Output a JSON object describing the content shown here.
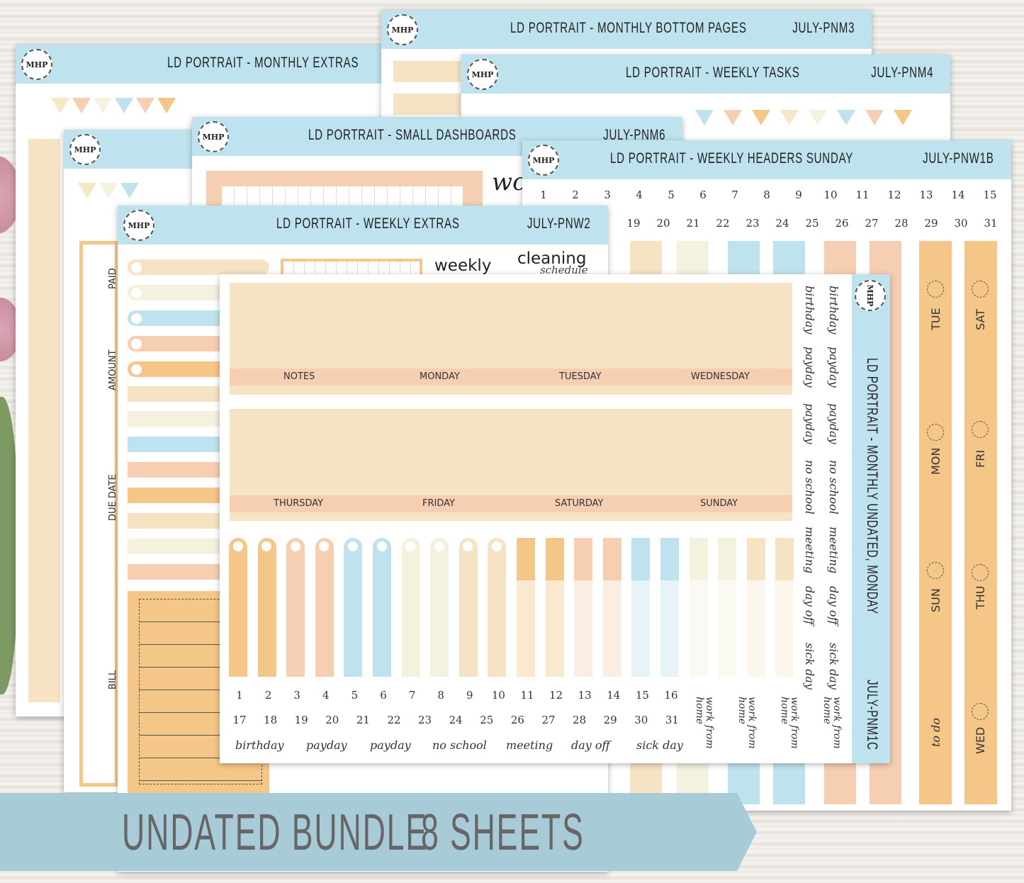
{
  "sheets": {
    "monthly_extras": {
      "logo": "MHP",
      "title": "LD PORTRAIT - MONTHLY EXTRAS",
      "labels": [
        "PAID",
        "AMOUNT",
        "DUE DATE",
        "BILL"
      ]
    },
    "monthly_bottom": {
      "logo": "MHP",
      "title": "LD PORTRAIT - MONTHLY BOTTOM PAGES",
      "code": "JULY-PNM3"
    },
    "weekly_tasks": {
      "logo": "MHP",
      "title": "LD PORTRAIT - WEEKLY TASKS",
      "code": "JULY-PNM4"
    },
    "small_dash": {
      "logo": "MHP",
      "title": "LD PORTRAIT -  SMALL DASHBOARDS",
      "code": "JULY-PNM6",
      "script_text": "wc"
    },
    "back_small": {
      "logo": "MHP"
    },
    "weekly_headers": {
      "logo": "MHP",
      "title": "LD PORTRAIT - WEEKLY HEADERS SUNDAY",
      "code": "JULY-PNW1B",
      "row1": [
        "1",
        "2",
        "3",
        "4",
        "5",
        "6",
        "7",
        "8",
        "9",
        "10",
        "11",
        "12",
        "13",
        "14",
        "15"
      ],
      "row2": [
        "19",
        "20",
        "21",
        "22",
        "23",
        "24",
        "25",
        "26",
        "27",
        "28",
        "29",
        "30",
        "31"
      ],
      "days_col1": [
        "TUE",
        "MON",
        "SUN",
        "to do"
      ],
      "days_col2": [
        "SAT",
        "FRI",
        "THU",
        "WED"
      ]
    },
    "weekly_extras": {
      "logo": "MHP",
      "title": "LD PORTRAIT - WEEKLY EXTRAS",
      "code": "JULY-PNW2",
      "weekly": "weekly",
      "cleaning": "cleaning",
      "schedule": "schedule"
    },
    "front": {
      "logo": "MHP",
      "title": "LD PORTRAIT - MONTHLY UNDATED, MONDAY",
      "code": "JULY-PNM1C",
      "headers_row1": [
        "NOTES",
        "MONDAY",
        "TUESDAY",
        "WEDNESDAY"
      ],
      "headers_row2": [
        "THURSDAY",
        "FRIDAY",
        "SATURDAY",
        "SUNDAY"
      ],
      "nums1": [
        "1",
        "2",
        "3",
        "4",
        "5",
        "6",
        "7",
        "8",
        "9",
        "10",
        "11",
        "12",
        "13",
        "14",
        "15",
        "16"
      ],
      "nums2": [
        "17",
        "18",
        "19",
        "20",
        "21",
        "22",
        "23",
        "24",
        "25",
        "26",
        "27",
        "28",
        "29",
        "30",
        "31"
      ],
      "words": [
        "birthday",
        "payday",
        "payday",
        "no school",
        "meeting",
        "day off",
        "sick day"
      ],
      "wfh": [
        "work from home",
        "work from home",
        "work from home",
        "work from home"
      ],
      "vert_col1": [
        "birthday",
        "payday",
        "payday",
        "no school",
        "meeting",
        "day off",
        "sick day"
      ],
      "vert_col2": [
        "birthday",
        "payday",
        "payday",
        "no school",
        "meeting",
        "day off",
        "sick day"
      ]
    }
  },
  "footer": {
    "left": "UNDATED BUNDLE",
    "right": "8 SHEETS"
  }
}
